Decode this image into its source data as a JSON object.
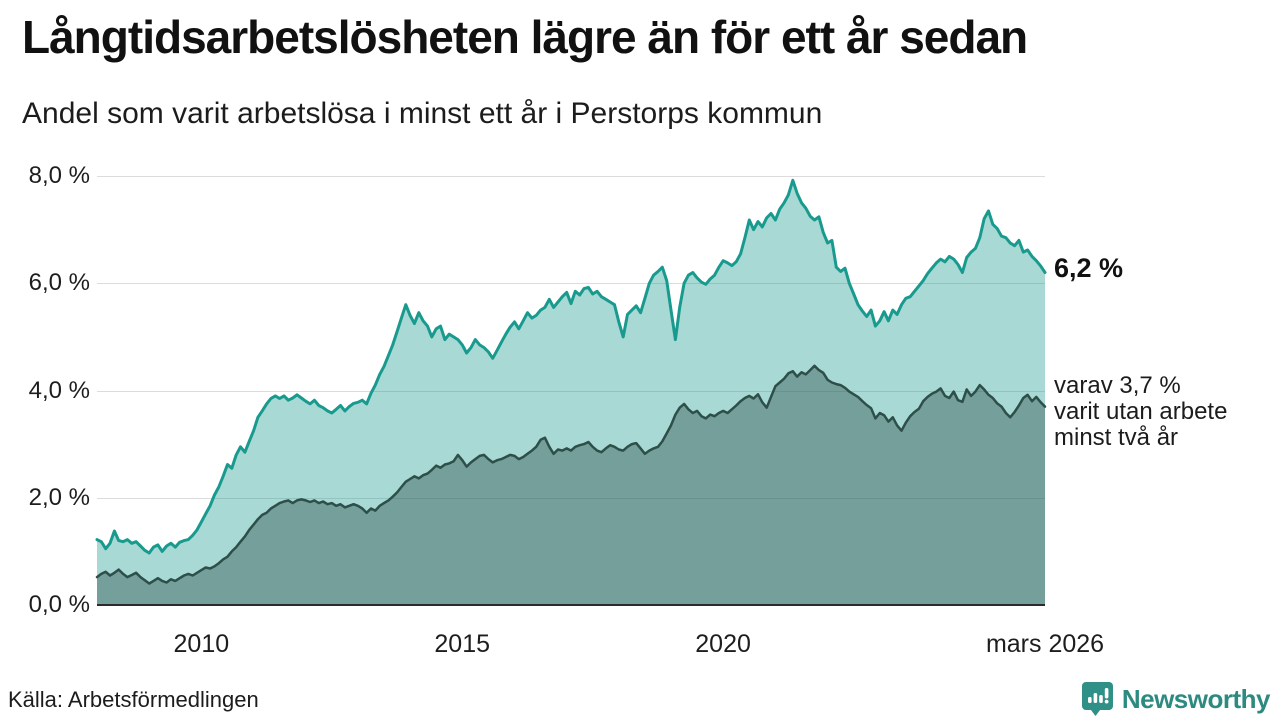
{
  "header": {
    "title": "Långtidsarbetslösheten lägre än för ett år sedan",
    "subtitle": "Andel som varit arbetslösa i minst ett år i Perstorps kommun"
  },
  "annotations": {
    "latest_value": "6,2 %",
    "secondary_line1": "varav 3,7 %",
    "secondary_line2": "varit utan arbete",
    "secondary_line3": "minst två år"
  },
  "footer": {
    "source": "Källa: Arbetsförmedlingen",
    "logo_text": "Newsworthy"
  },
  "colors": {
    "series1_line": "#199a8e",
    "series1_fill": "rgba(25,154,142,0.38)",
    "series2_line": "#2e4f49",
    "series2_fill": "rgba(46,79,73,0.42)",
    "grid": "#dcdcdc",
    "axis": "#2b2b2b",
    "logo_teal": "#2f9087"
  },
  "chart_data": {
    "type": "area",
    "title": "Långtidsarbetslösheten lägre än för ett år sedan",
    "subtitle": "Andel som varit arbetslösa i minst ett år i Perstorps kommun",
    "xlabel": "",
    "ylabel": "",
    "unit": "%",
    "grid": true,
    "legend_position": "right-annotations",
    "x_range": [
      2008.0,
      2026.17
    ],
    "ylim": [
      0,
      8
    ],
    "y_axis": {
      "range": [
        0,
        8
      ],
      "ticks": [
        {
          "value": 0,
          "label": "0,0 %"
        },
        {
          "value": 2,
          "label": "2,0 %"
        },
        {
          "value": 4,
          "label": "4,0 %"
        },
        {
          "value": 6,
          "label": "6,0 %"
        },
        {
          "value": 8,
          "label": "8,0 %"
        }
      ]
    },
    "x_axis": {
      "ticks": [
        {
          "year": 2010,
          "label": "2010"
        },
        {
          "year": 2015,
          "label": "2015"
        },
        {
          "year": 2020,
          "label": "2020"
        },
        {
          "year": 2026.17,
          "label": "mars 2026"
        }
      ]
    },
    "series": [
      {
        "name": "Andel som varit arbetslösa i minst ett år",
        "end_label": "6,2 %",
        "latest": 6.2,
        "color": "#199a8e",
        "fill": "rgba(25,154,142,0.38)",
        "stroke_width": 3,
        "x_start": 2008.0,
        "x_end": 2026.17,
        "values": [
          1.22,
          1.18,
          1.05,
          1.15,
          1.38,
          1.2,
          1.18,
          1.22,
          1.15,
          1.18,
          1.1,
          1.02,
          0.97,
          1.08,
          1.12,
          1.0,
          1.1,
          1.15,
          1.08,
          1.17,
          1.2,
          1.22,
          1.3,
          1.4,
          1.55,
          1.7,
          1.85,
          2.05,
          2.2,
          2.4,
          2.62,
          2.55,
          2.8,
          2.95,
          2.85,
          3.05,
          3.25,
          3.5,
          3.62,
          3.75,
          3.85,
          3.9,
          3.85,
          3.9,
          3.82,
          3.86,
          3.92,
          3.86,
          3.8,
          3.75,
          3.82,
          3.72,
          3.68,
          3.62,
          3.58,
          3.65,
          3.72,
          3.62,
          3.7,
          3.76,
          3.78,
          3.82,
          3.75,
          3.95,
          4.1,
          4.3,
          4.45,
          4.65,
          4.85,
          5.1,
          5.35,
          5.6,
          5.4,
          5.25,
          5.45,
          5.3,
          5.2,
          5.0,
          5.15,
          5.2,
          4.95,
          5.05,
          5.0,
          4.95,
          4.85,
          4.7,
          4.8,
          4.95,
          4.85,
          4.8,
          4.72,
          4.6,
          4.75,
          4.9,
          5.05,
          5.18,
          5.28,
          5.15,
          5.3,
          5.45,
          5.35,
          5.4,
          5.5,
          5.55,
          5.7,
          5.55,
          5.65,
          5.75,
          5.83,
          5.62,
          5.85,
          5.78,
          5.9,
          5.92,
          5.8,
          5.85,
          5.75,
          5.7,
          5.65,
          5.6,
          5.28,
          5.0,
          5.42,
          5.5,
          5.58,
          5.45,
          5.72,
          6.0,
          6.15,
          6.22,
          6.3,
          6.05,
          5.5,
          4.95,
          5.55,
          6.0,
          6.15,
          6.2,
          6.1,
          6.02,
          5.98,
          6.08,
          6.15,
          6.3,
          6.42,
          6.38,
          6.33,
          6.4,
          6.55,
          6.85,
          7.18,
          7.0,
          7.15,
          7.05,
          7.22,
          7.3,
          7.18,
          7.38,
          7.5,
          7.65,
          7.92,
          7.68,
          7.5,
          7.4,
          7.25,
          7.18,
          7.24,
          6.95,
          6.75,
          6.8,
          6.3,
          6.22,
          6.28,
          6.0,
          5.8,
          5.6,
          5.48,
          5.38,
          5.5,
          5.2,
          5.3,
          5.47,
          5.3,
          5.5,
          5.42,
          5.6,
          5.72,
          5.75,
          5.85,
          5.95,
          6.05,
          6.18,
          6.28,
          6.38,
          6.45,
          6.4,
          6.5,
          6.45,
          6.35,
          6.2,
          6.48,
          6.58,
          6.65,
          6.85,
          7.2,
          7.35,
          7.1,
          7.02,
          6.88,
          6.85,
          6.75,
          6.7,
          6.8,
          6.58,
          6.62,
          6.5,
          6.42,
          6.32,
          6.2
        ]
      },
      {
        "name": "varav andel som varit utan arbete minst två år",
        "end_label": "varav 3,7 % varit utan arbete minst två år",
        "latest": 3.7,
        "color": "#2e4f49",
        "fill": "rgba(46,79,73,0.42)",
        "stroke_width": 2.5,
        "x_start": 2008.0,
        "x_end": 2026.17,
        "values": [
          0.52,
          0.58,
          0.62,
          0.55,
          0.6,
          0.66,
          0.58,
          0.52,
          0.56,
          0.6,
          0.52,
          0.46,
          0.4,
          0.45,
          0.5,
          0.45,
          0.42,
          0.48,
          0.45,
          0.5,
          0.55,
          0.58,
          0.55,
          0.6,
          0.65,
          0.7,
          0.68,
          0.72,
          0.78,
          0.85,
          0.9,
          1.0,
          1.08,
          1.18,
          1.28,
          1.4,
          1.5,
          1.6,
          1.68,
          1.72,
          1.8,
          1.85,
          1.9,
          1.93,
          1.95,
          1.9,
          1.95,
          1.97,
          1.95,
          1.92,
          1.95,
          1.9,
          1.93,
          1.88,
          1.9,
          1.85,
          1.88,
          1.82,
          1.85,
          1.88,
          1.85,
          1.8,
          1.72,
          1.8,
          1.76,
          1.85,
          1.9,
          1.95,
          2.02,
          2.1,
          2.2,
          2.3,
          2.35,
          2.4,
          2.36,
          2.42,
          2.45,
          2.52,
          2.6,
          2.56,
          2.62,
          2.64,
          2.68,
          2.8,
          2.7,
          2.58,
          2.66,
          2.72,
          2.78,
          2.8,
          2.72,
          2.66,
          2.7,
          2.72,
          2.76,
          2.8,
          2.78,
          2.72,
          2.76,
          2.82,
          2.88,
          2.95,
          3.08,
          3.12,
          2.95,
          2.82,
          2.9,
          2.88,
          2.92,
          2.88,
          2.95,
          2.98,
          3.0,
          3.04,
          2.95,
          2.88,
          2.85,
          2.92,
          2.98,
          2.95,
          2.9,
          2.88,
          2.95,
          3.0,
          3.02,
          2.92,
          2.82,
          2.88,
          2.92,
          2.95,
          3.05,
          3.2,
          3.35,
          3.55,
          3.68,
          3.75,
          3.65,
          3.58,
          3.62,
          3.52,
          3.48,
          3.55,
          3.52,
          3.58,
          3.62,
          3.58,
          3.65,
          3.72,
          3.8,
          3.86,
          3.9,
          3.85,
          3.93,
          3.78,
          3.68,
          3.88,
          4.08,
          4.15,
          4.22,
          4.32,
          4.36,
          4.26,
          4.34,
          4.3,
          4.38,
          4.46,
          4.38,
          4.33,
          4.2,
          4.15,
          4.12,
          4.1,
          4.05,
          3.98,
          3.93,
          3.88,
          3.8,
          3.73,
          3.67,
          3.48,
          3.58,
          3.54,
          3.42,
          3.5,
          3.35,
          3.25,
          3.4,
          3.52,
          3.6,
          3.66,
          3.8,
          3.88,
          3.94,
          3.98,
          4.04,
          3.9,
          3.86,
          3.98,
          3.82,
          3.79,
          4.02,
          3.9,
          3.98,
          4.1,
          4.02,
          3.92,
          3.86,
          3.76,
          3.7,
          3.58,
          3.5,
          3.6,
          3.72,
          3.86,
          3.92,
          3.8,
          3.88,
          3.78,
          3.7
        ]
      }
    ]
  }
}
